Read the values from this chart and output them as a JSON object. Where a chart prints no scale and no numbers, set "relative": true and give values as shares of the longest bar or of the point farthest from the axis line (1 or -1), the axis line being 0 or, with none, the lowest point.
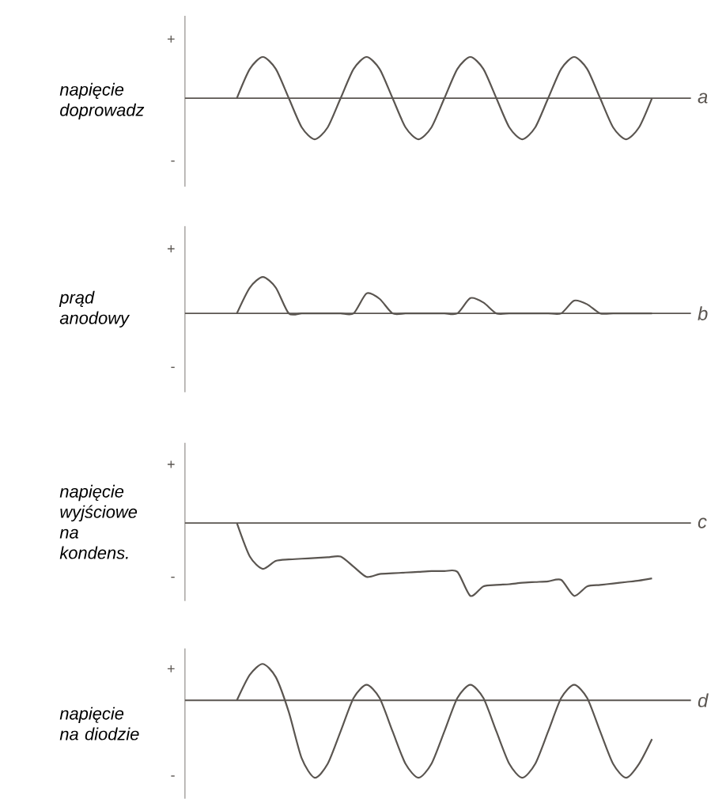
{
  "chart_data": [
    {
      "type": "line",
      "relative": true,
      "ylabel": "napięcie doprowadz",
      "annotations": [
        "+",
        "-",
        "a"
      ],
      "categories": [
        null,
        null,
        null,
        null,
        null,
        null,
        null,
        null,
        null,
        null,
        null,
        null,
        null,
        null,
        null,
        null,
        null,
        null,
        null,
        null,
        null,
        null,
        null,
        null,
        null,
        null,
        null,
        null,
        null,
        null,
        null,
        null,
        null,
        null,
        null,
        null,
        null,
        null,
        null,
        null
      ],
      "series": [
        {
          "color": "#5a5550",
          "values": [
            null,
            null,
            null,
            null,
            0,
            0.71,
            1,
            0.71,
            0,
            -0.71,
            -1,
            -0.71,
            0,
            0.71,
            1,
            0.71,
            0,
            -0.71,
            -1,
            -0.71,
            0,
            0.71,
            1,
            0.71,
            0,
            -0.71,
            -1,
            -0.71,
            0,
            0.71,
            1,
            0.71,
            0,
            -0.71,
            -1,
            -0.71,
            0,
            null,
            null,
            null
          ]
        }
      ]
    },
    {
      "type": "line",
      "relative": true,
      "ylabel": "prąd anodowy",
      "annotations": [
        "+",
        "-",
        "b"
      ],
      "categories": [
        null,
        null,
        null,
        null,
        null,
        null,
        null,
        null,
        null,
        null,
        null,
        null,
        null,
        null,
        null,
        null,
        null,
        null,
        null,
        null,
        null,
        null,
        null,
        null,
        null,
        null,
        null,
        null,
        null,
        null,
        null,
        null,
        null,
        null,
        null,
        null,
        null,
        null,
        null,
        null
      ],
      "series": [
        {
          "color": "#5a5550",
          "values": [
            null,
            null,
            null,
            null,
            0,
            0.71,
            1,
            0.71,
            0,
            0,
            0,
            0,
            0,
            0,
            0.55,
            0.4,
            0,
            0,
            0,
            0,
            0,
            0,
            0.42,
            0.3,
            0,
            0,
            0,
            0,
            0,
            0,
            0.35,
            0.25,
            0,
            0,
            0,
            0,
            0,
            null,
            null,
            null
          ]
        }
      ]
    },
    {
      "type": "line",
      "relative": true,
      "ylabel": "napięcie wyjściowe na kondens.",
      "annotations": [
        "+",
        "-",
        "c"
      ],
      "categories": [
        null,
        null,
        null,
        null,
        null,
        null,
        null,
        null,
        null,
        null,
        null,
        null,
        null,
        null,
        null,
        null,
        null,
        null,
        null,
        null,
        null,
        null,
        null,
        null,
        null,
        null,
        null,
        null,
        null,
        null,
        null,
        null,
        null,
        null,
        null,
        null,
        null,
        null,
        null,
        null
      ],
      "series": [
        {
          "color": "#5a5550",
          "values": [
            null,
            null,
            null,
            null,
            0,
            -0.46,
            -0.63,
            -0.52,
            -0.5,
            -0.49,
            -0.48,
            -0.47,
            -0.46,
            -0.6,
            -0.74,
            -0.7,
            -0.69,
            -0.68,
            -0.67,
            -0.66,
            -0.66,
            -0.67,
            -1,
            -0.87,
            -0.85,
            -0.84,
            -0.82,
            -0.81,
            -0.8,
            -0.78,
            -1,
            -0.87,
            -0.85,
            -0.83,
            -0.81,
            -0.79,
            -0.76,
            null,
            null,
            null
          ]
        }
      ]
    },
    {
      "type": "line",
      "relative": true,
      "ylabel": "napięcie na diodzie",
      "annotations": [
        "+",
        "-",
        "d"
      ],
      "categories": [
        null,
        null,
        null,
        null,
        null,
        null,
        null,
        null,
        null,
        null,
        null,
        null,
        null,
        null,
        null,
        null,
        null,
        null,
        null,
        null,
        null,
        null,
        null,
        null,
        null,
        null,
        null,
        null,
        null,
        null,
        null,
        null,
        null,
        null,
        null,
        null,
        null,
        null,
        null,
        null
      ],
      "series": [
        {
          "color": "#5a5550",
          "values": [
            null,
            null,
            null,
            null,
            0,
            0.33,
            0.47,
            0.3,
            -0.15,
            -0.75,
            -1,
            -0.82,
            -0.4,
            0.03,
            0.2,
            0.03,
            -0.4,
            -0.82,
            -1,
            -0.82,
            -0.4,
            0.03,
            0.2,
            0.03,
            -0.4,
            -0.82,
            -1,
            -0.82,
            -0.4,
            0.03,
            0.2,
            0.03,
            -0.4,
            -0.82,
            -1,
            -0.82,
            -0.5,
            null,
            null,
            null
          ]
        }
      ]
    }
  ]
}
